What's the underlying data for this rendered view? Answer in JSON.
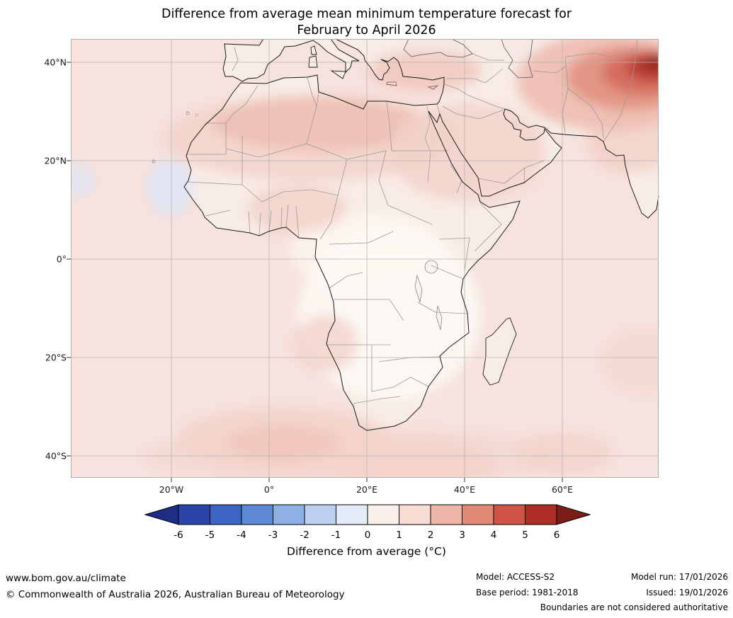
{
  "title": {
    "line1": "Difference from average mean minimum temperature forecast for",
    "line2": "February to April 2026"
  },
  "axes": {
    "lat_labels": [
      "40°N",
      "20°N",
      "0°",
      "20°S",
      "40°S"
    ],
    "lon_labels": [
      "20°W",
      "0°",
      "20°E",
      "40°E",
      "60°E"
    ]
  },
  "colorbar": {
    "title": "Difference from average (°C)",
    "tick_labels": [
      "-6",
      "-5",
      "-4",
      "-3",
      "-2",
      "-1",
      "0",
      "1",
      "2",
      "3",
      "4",
      "5",
      "6"
    ],
    "colors": [
      "#1f2d86",
      "#2b44a7",
      "#3c64c4",
      "#5e8ad5",
      "#8fb0e4",
      "#bcd0f0",
      "#e3ebf8",
      "#faf0eb",
      "#f6dcd3",
      "#eeb6a8",
      "#e18a78",
      "#cf5347",
      "#ab2d23",
      "#7a1d17"
    ]
  },
  "footer": {
    "website": "www.bom.gov.au/climate",
    "copyright": "© Commonwealth of Australia 2026, Australian Bureau of Meteorology",
    "model": "Model: ACCESS-S2",
    "model_run": "Model run: 17/01/2026",
    "base_period": "Base period: 1981-2018",
    "issued": "Issued: 19/01/2026",
    "disclaimer": "Boundaries are not considered authoritative"
  },
  "chart_data": {
    "type": "heatmap",
    "title": "Difference from average mean minimum temperature forecast for February to April 2026",
    "colorbar_label": "Difference from average (°C)",
    "colorbar_ticks": [
      -6,
      -5,
      -4,
      -3,
      -2,
      -1,
      0,
      1,
      2,
      3,
      4,
      5,
      6
    ],
    "x_ticks": [
      "20°W",
      "0°",
      "20°E",
      "40°E",
      "60°E"
    ],
    "y_ticks": [
      "40°N",
      "20°N",
      "0°",
      "20°S",
      "40°S"
    ],
    "region_anomalies": [
      {
        "region": "Most of Africa and surrounding oceans",
        "anomaly_c": "0 to 2"
      },
      {
        "region": "Central and southern Africa interior",
        "anomaly_c": "0 to 1"
      },
      {
        "region": "Sahara, Sahel and North Africa",
        "anomaly_c": "1 to 3"
      },
      {
        "region": "Anatolia, Middle East and Arabia",
        "anomaly_c": "1 to 3"
      },
      {
        "region": "Top-right corner (Hindu Kush region)",
        "anomaly_c": "3 to more than 6"
      },
      {
        "region": "Atlantic Ocean west of Senegal",
        "anomaly_c": "-1 to 0"
      },
      {
        "region": "Southern ocean patches (30°S-45°S)",
        "anomaly_c": "1 to 3"
      }
    ]
  }
}
